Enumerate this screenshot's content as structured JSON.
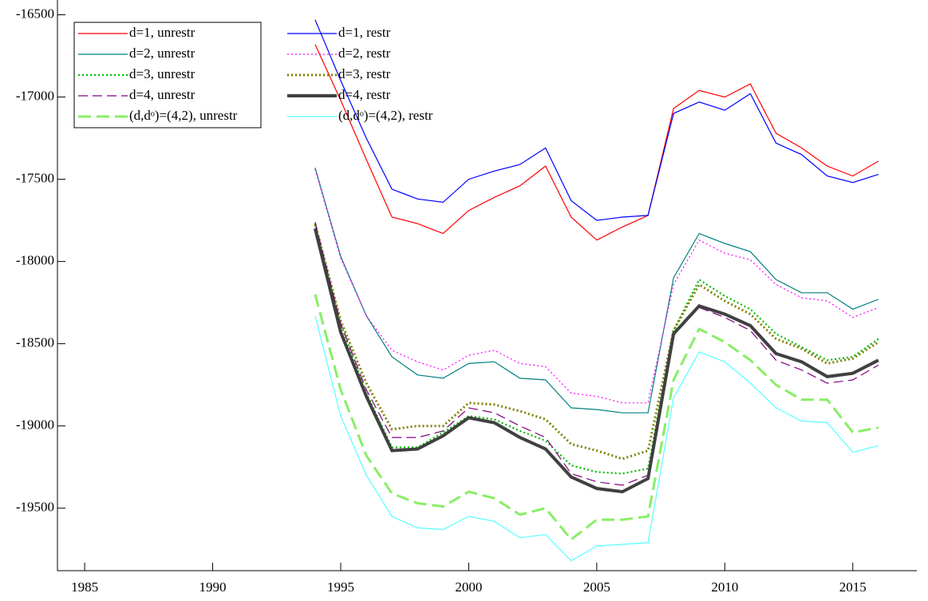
{
  "chart_data": {
    "type": "line",
    "x": [
      1994,
      1995,
      1996,
      1997,
      1998,
      1999,
      2000,
      2001,
      2002,
      2003,
      2004,
      2005,
      2006,
      2007,
      2008,
      2009,
      2010,
      2011,
      2012,
      2013,
      2014,
      2015,
      2016
    ],
    "series": [
      {
        "name": "d=1, unrestr",
        "color": "#ff0000",
        "dash": "solid",
        "width": 1.2,
        "values": [
          -16680,
          -17020,
          -17380,
          -17730,
          -17770,
          -17830,
          -17690,
          -17610,
          -17540,
          -17420,
          -17730,
          -17870,
          -17790,
          -17720,
          -17070,
          -16960,
          -17000,
          -16920,
          -17220,
          -17310,
          -17420,
          -17480,
          -17390
        ]
      },
      {
        "name": "d=1, restr",
        "color": "#0000ff",
        "dash": "solid",
        "width": 1.2,
        "values": [
          -16530,
          -16900,
          -17250,
          -17560,
          -17620,
          -17640,
          -17500,
          -17450,
          -17410,
          -17310,
          -17630,
          -17750,
          -17730,
          -17720,
          -17100,
          -17030,
          -17080,
          -16980,
          -17280,
          -17350,
          -17480,
          -17520,
          -17470
        ]
      },
      {
        "name": "d=2, unrestr",
        "color": "#008080",
        "dash": "solid",
        "width": 1.2,
        "values": [
          -17430,
          -17970,
          -18330,
          -18580,
          -18690,
          -18710,
          -18620,
          -18610,
          -18710,
          -18720,
          -18890,
          -18900,
          -18920,
          -18920,
          -18100,
          -17830,
          -17890,
          -17940,
          -18110,
          -18190,
          -18190,
          -18290,
          -18230
        ]
      },
      {
        "name": "d=2, restr",
        "color": "#ff00ff",
        "dash": "dotted",
        "width": 1.2,
        "values": [
          -17440,
          -17980,
          -18330,
          -18540,
          -18610,
          -18660,
          -18570,
          -18540,
          -18620,
          -18640,
          -18800,
          -18820,
          -18860,
          -18860,
          -18140,
          -17870,
          -17950,
          -17990,
          -18140,
          -18220,
          -18240,
          -18340,
          -18280
        ]
      },
      {
        "name": "d=3, unrestr",
        "color": "#00bb00",
        "dash": "dotted",
        "width": 2.2,
        "values": [
          -17780,
          -18380,
          -18800,
          -19130,
          -19130,
          -19040,
          -18940,
          -18960,
          -19030,
          -19090,
          -19240,
          -19280,
          -19290,
          -19260,
          -18420,
          -18110,
          -18210,
          -18290,
          -18440,
          -18520,
          -18600,
          -18580,
          -18470
        ]
      },
      {
        "name": "d=3, restr",
        "color": "#808000",
        "dash": "dotted",
        "width": 3,
        "values": [
          -17770,
          -18360,
          -18740,
          -19020,
          -19000,
          -19000,
          -18860,
          -18870,
          -18910,
          -18960,
          -19110,
          -19150,
          -19200,
          -19150,
          -18420,
          -18140,
          -18240,
          -18320,
          -18470,
          -18530,
          -18620,
          -18590,
          -18490
        ]
      },
      {
        "name": "d=4, unrestr",
        "color": "#800080",
        "dash": "dashed",
        "width": 1.2,
        "values": [
          -17760,
          -18380,
          -18780,
          -19070,
          -19070,
          -19030,
          -18890,
          -18920,
          -19000,
          -19070,
          -19290,
          -19340,
          -19360,
          -19300,
          -18450,
          -18280,
          -18340,
          -18420,
          -18600,
          -18660,
          -18740,
          -18720,
          -18630
        ]
      },
      {
        "name": "d=4, restr",
        "color": "#404040",
        "dash": "solid",
        "width": 4,
        "values": [
          -17800,
          -18430,
          -18820,
          -19150,
          -19140,
          -19060,
          -18950,
          -18980,
          -19070,
          -19140,
          -19310,
          -19380,
          -19400,
          -19320,
          -18440,
          -18270,
          -18320,
          -18390,
          -18560,
          -18610,
          -18700,
          -18680,
          -18600
        ]
      },
      {
        "name": "(d,dᵒ)=(4,2), unrestr",
        "color": "#88ee66",
        "dash": "longdash",
        "width": 3,
        "values": [
          -18200,
          -18780,
          -19180,
          -19410,
          -19470,
          -19490,
          -19400,
          -19440,
          -19540,
          -19500,
          -19690,
          -19570,
          -19570,
          -19550,
          -18720,
          -18410,
          -18490,
          -18600,
          -18750,
          -18840,
          -18840,
          -19040,
          -19010
        ]
      },
      {
        "name": "(d,dᵒ)=(4,2), restr",
        "color": "#55ffff",
        "dash": "solid",
        "width": 1.2,
        "values": [
          -18330,
          -18940,
          -19300,
          -19550,
          -19620,
          -19630,
          -19550,
          -19580,
          -19680,
          -19660,
          -19820,
          -19730,
          -19720,
          -19710,
          -18830,
          -18550,
          -18610,
          -18740,
          -18890,
          -18970,
          -18980,
          -19160,
          -19120
        ]
      }
    ],
    "xlim": [
      1984,
      2017.5
    ],
    "xticks": [
      1985,
      1990,
      1995,
      2000,
      2005,
      2010,
      2015
    ],
    "ylim": [
      -19880,
      -16410
    ],
    "yticks": [
      -16500,
      -17000,
      -17500,
      -18000,
      -18500,
      -19000,
      -19500
    ],
    "grid": false,
    "legend": "upper left"
  }
}
